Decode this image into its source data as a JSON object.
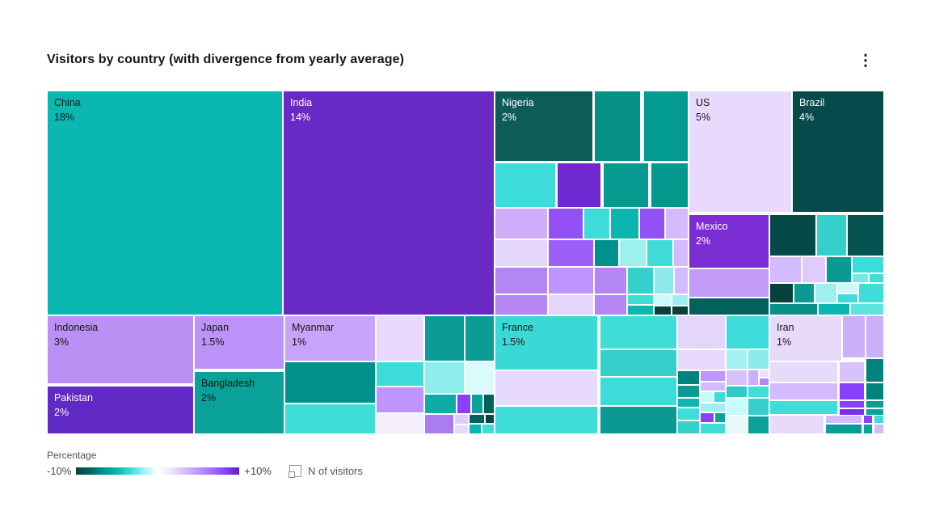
{
  "header": {
    "title": "Visitors by country (with divergence from yearly average)",
    "overflow_glyph": "⋮"
  },
  "legend": {
    "gradient_title": "Percentage",
    "gradient_min_label": "-10%",
    "gradient_max_label": "+10%",
    "gradient_stops": [
      "#0b423f",
      "#00635f",
      "#00918c",
      "#0cb5ae",
      "#3ddbd9",
      "#9ef0f0",
      "#ffffff",
      "#eee3fd",
      "#d4bbff",
      "#be95ff",
      "#a56eff",
      "#8a3ffc",
      "#5b21ad"
    ],
    "size_legend_label": "N of visitors"
  },
  "colors": {
    "background": "#ffffff",
    "title_text": "#161616",
    "cell_text_dark": "#161616",
    "cell_text_light": "#ffffff",
    "divergence_min": "#0b423f",
    "divergence_max": "#5b21ad"
  },
  "chart_data": {
    "type": "treemap",
    "title": "Visitors by country (with divergence from yearly average)",
    "legend_position": "bottom",
    "labeled_nodes": [
      {
        "name": "China",
        "value": "18%"
      },
      {
        "name": "India",
        "value": "14%"
      },
      {
        "name": "Nigeria",
        "value": "2%"
      },
      {
        "name": "US",
        "value": "5%"
      },
      {
        "name": "Brazil",
        "value": "4%"
      },
      {
        "name": "Mexico",
        "value": "2%"
      },
      {
        "name": "Indonesia",
        "value": "3%"
      },
      {
        "name": "Pakistan",
        "value": "2%"
      },
      {
        "name": "Japan",
        "value": "1.5%"
      },
      {
        "name": "Bangladesh",
        "value": "2%"
      },
      {
        "name": "Myanmar",
        "value": "1%"
      },
      {
        "name": "France",
        "value": "1.5%"
      },
      {
        "name": "Iran",
        "value": "1%"
      }
    ],
    "tiles": [
      [
        0,
        0,
        292,
        278,
        "#0ab7b1",
        "China",
        "18%",
        "dark"
      ],
      [
        292,
        0,
        262,
        278,
        "#6929c4",
        "India",
        "14%",
        "light"
      ],
      [
        554,
        0,
        122,
        88,
        "#0d5c57",
        "Nigeria",
        "2%",
        "light"
      ],
      [
        677,
        0,
        58,
        88,
        "#059185"
      ],
      [
        738,
        0,
        56,
        88,
        "#029a92"
      ],
      [
        554,
        89,
        76,
        56,
        "#3ddbd9"
      ],
      [
        631,
        89,
        55,
        56,
        "#6f28d0"
      ],
      [
        688,
        89,
        57,
        56,
        "#049a90"
      ],
      [
        747,
        89,
        47,
        56,
        "#03988e"
      ],
      [
        554,
        145,
        66,
        39,
        "#cfadfb"
      ],
      [
        620,
        145,
        44,
        39,
        "#9350f5"
      ],
      [
        664,
        145,
        33,
        39,
        "#3ddbd9"
      ],
      [
        697,
        145,
        36,
        39,
        "#0cb5ae"
      ],
      [
        733,
        145,
        32,
        39,
        "#9350f5"
      ],
      [
        765,
        145,
        29,
        39,
        "#d4bbff"
      ],
      [
        554,
        184,
        66,
        34,
        "#e4d5fc"
      ],
      [
        620,
        184,
        57,
        34,
        "#9c5ef7"
      ],
      [
        677,
        184,
        31,
        34,
        "#00918c"
      ],
      [
        708,
        184,
        34,
        34,
        "#9ef0f0"
      ],
      [
        742,
        184,
        33,
        34,
        "#40dcd8"
      ],
      [
        775,
        184,
        19,
        34,
        "#d4bbff"
      ],
      [
        554,
        218,
        66,
        34,
        "#b486f4"
      ],
      [
        620,
        218,
        57,
        34,
        "#be95ff"
      ],
      [
        677,
        218,
        41,
        34,
        "#b486f4"
      ],
      [
        718,
        218,
        33,
        34,
        "#35d0cc"
      ],
      [
        751,
        218,
        25,
        34,
        "#8debe9"
      ],
      [
        776,
        218,
        18,
        34,
        "#d4bbff"
      ],
      [
        554,
        252,
        66,
        26,
        "#b486f4"
      ],
      [
        620,
        252,
        57,
        26,
        "#e4d5fc"
      ],
      [
        677,
        252,
        41,
        26,
        "#b486f4"
      ],
      [
        718,
        252,
        33,
        13,
        "#40dcd8"
      ],
      [
        718,
        265,
        33,
        13,
        "#0cb5ae"
      ],
      [
        751,
        252,
        22,
        14,
        "#c9fbfa"
      ],
      [
        751,
        266,
        22,
        12,
        "#06413e"
      ],
      [
        773,
        252,
        21,
        14,
        "#9ef0f0"
      ],
      [
        773,
        266,
        21,
        12,
        "#06413e"
      ],
      [
        794,
        0,
        128,
        151,
        "#e8dafc",
        "US",
        "5%",
        "dark"
      ],
      [
        922,
        0,
        114,
        151,
        "#064a4b",
        "Brazil",
        "4%",
        "light"
      ],
      [
        794,
        153,
        100,
        67,
        "#7b2dd3",
        "Mexico",
        "2%",
        "light"
      ],
      [
        794,
        220,
        100,
        36,
        "#c19bf7"
      ],
      [
        794,
        256,
        100,
        22,
        "#03615d"
      ],
      [
        894,
        153,
        58,
        52,
        "#064a48"
      ],
      [
        952,
        153,
        38,
        52,
        "#35d0cc"
      ],
      [
        990,
        153,
        46,
        52,
        "#055350"
      ],
      [
        894,
        205,
        40,
        33,
        "#d4bbff"
      ],
      [
        934,
        205,
        30,
        33,
        "#dfccfc"
      ],
      [
        964,
        205,
        32,
        33,
        "#0a9a93"
      ],
      [
        996,
        205,
        40,
        21,
        "#3ddbd9"
      ],
      [
        996,
        226,
        21,
        12,
        "#76e8e8"
      ],
      [
        1017,
        226,
        19,
        12,
        "#40dcd8"
      ],
      [
        894,
        238,
        30,
        25,
        "#06413e"
      ],
      [
        924,
        238,
        26,
        25,
        "#0a9a93"
      ],
      [
        950,
        238,
        28,
        25,
        "#9ef0f0"
      ],
      [
        978,
        238,
        26,
        13,
        "#c9fbf9"
      ],
      [
        978,
        251,
        26,
        12,
        "#3ddbd9"
      ],
      [
        1004,
        238,
        32,
        25,
        "#40dcd8"
      ],
      [
        894,
        263,
        60,
        15,
        "#0a8f89"
      ],
      [
        954,
        263,
        40,
        15,
        "#0cb5ae"
      ],
      [
        994,
        263,
        42,
        15,
        "#5fe3de"
      ],
      [
        0,
        278,
        182,
        85,
        "#bb90f4",
        "Indonesia",
        "3%",
        "dark"
      ],
      [
        0,
        365,
        182,
        60,
        "#6129c6",
        "Pakistan",
        "2%",
        "light"
      ],
      [
        182,
        278,
        112,
        67,
        "#bd93fa",
        "Japan",
        "1.5%",
        "dark"
      ],
      [
        182,
        347,
        112,
        78,
        "#0aa198",
        "Bangladesh",
        "2%",
        "dark"
      ],
      [
        294,
        278,
        113,
        57,
        "#c7a4f8",
        "Myanmar",
        "1%",
        "dark"
      ],
      [
        407,
        278,
        60,
        57,
        "#e8daff"
      ],
      [
        467,
        278,
        50,
        57,
        "#0a9c95"
      ],
      [
        517,
        278,
        37,
        57,
        "#0b9d95"
      ],
      [
        294,
        335,
        113,
        52,
        "#00918c"
      ],
      [
        407,
        335,
        60,
        31,
        "#3ddbd9"
      ],
      [
        467,
        335,
        50,
        40,
        "#8eecec"
      ],
      [
        517,
        335,
        37,
        40,
        "#d9fbfb"
      ],
      [
        407,
        366,
        60,
        33,
        "#be95ff"
      ],
      [
        467,
        375,
        40,
        25,
        "#0daca4"
      ],
      [
        507,
        375,
        18,
        25,
        "#8a3ffc"
      ],
      [
        525,
        375,
        15,
        25,
        "#0aa39b"
      ],
      [
        540,
        375,
        14,
        25,
        "#03615c"
      ],
      [
        294,
        387,
        113,
        38,
        "#40dcd8"
      ],
      [
        407,
        399,
        60,
        26,
        "#f3edfc"
      ],
      [
        467,
        400,
        37,
        25,
        "#ab7cf0"
      ],
      [
        504,
        400,
        18,
        13,
        "#dfccfc"
      ],
      [
        504,
        413,
        18,
        12,
        "#e8daff"
      ],
      [
        522,
        400,
        20,
        12,
        "#03615c"
      ],
      [
        542,
        400,
        12,
        12,
        "#0a4541"
      ],
      [
        522,
        412,
        16,
        13,
        "#0cb5ae"
      ],
      [
        538,
        412,
        16,
        13,
        "#40dcd8"
      ],
      [
        554,
        278,
        128,
        68,
        "#3bd9d5",
        "France",
        "1.5%",
        "dark"
      ],
      [
        554,
        346,
        128,
        44,
        "#e8daff"
      ],
      [
        554,
        390,
        128,
        35,
        "#40dcd8"
      ],
      [
        684,
        278,
        96,
        42,
        "#40dcd8"
      ],
      [
        684,
        320,
        96,
        34,
        "#35d0cc"
      ],
      [
        684,
        354,
        96,
        36,
        "#3ddbd9"
      ],
      [
        684,
        390,
        96,
        35,
        "#0b9a93"
      ],
      [
        780,
        278,
        60,
        42,
        "#e4d5fb"
      ],
      [
        780,
        320,
        60,
        26,
        "#e8daff"
      ],
      [
        780,
        346,
        28,
        18,
        "#00837d"
      ],
      [
        780,
        364,
        28,
        16,
        "#0b9a93"
      ],
      [
        780,
        380,
        28,
        12,
        "#0cb5ae"
      ],
      [
        780,
        392,
        28,
        16,
        "#40dcd8"
      ],
      [
        780,
        408,
        28,
        17,
        "#35d0cc"
      ],
      [
        808,
        346,
        32,
        14,
        "#be95ff"
      ],
      [
        808,
        360,
        32,
        12,
        "#d4bbff"
      ],
      [
        808,
        372,
        17,
        14,
        "#c4fafa"
      ],
      [
        825,
        372,
        15,
        14,
        "#3ddbd9"
      ],
      [
        808,
        386,
        32,
        12,
        "#9ef0f0"
      ],
      [
        808,
        398,
        18,
        13,
        "#8a3ffc"
      ],
      [
        826,
        398,
        14,
        13,
        "#0aa39b"
      ],
      [
        808,
        411,
        32,
        14,
        "#40dcd8"
      ],
      [
        840,
        278,
        54,
        42,
        "#3ddbd9"
      ],
      [
        840,
        320,
        27,
        25,
        "#a5f1ef"
      ],
      [
        867,
        320,
        27,
        25,
        "#8debe9"
      ],
      [
        840,
        345,
        27,
        20,
        "#d8c2fb"
      ],
      [
        867,
        345,
        14,
        20,
        "#cbadf9"
      ],
      [
        881,
        345,
        13,
        10,
        "#ecdffc"
      ],
      [
        881,
        355,
        13,
        10,
        "#b488f4"
      ],
      [
        840,
        365,
        27,
        15,
        "#2fcac6"
      ],
      [
        867,
        365,
        27,
        15,
        "#40dcd8"
      ],
      [
        840,
        380,
        27,
        22,
        "#c9fbfa"
      ],
      [
        867,
        380,
        27,
        22,
        "#35d0cc"
      ],
      [
        840,
        402,
        27,
        23,
        "#e8f8f8"
      ],
      [
        867,
        402,
        27,
        23,
        "#0aa39b"
      ],
      [
        894,
        278,
        90,
        57,
        "#e8dafb",
        "Iran",
        "1%",
        "dark"
      ],
      [
        984,
        278,
        29,
        53,
        "#cdaef9"
      ],
      [
        1013,
        278,
        23,
        53,
        "#cdaef9"
      ],
      [
        894,
        335,
        85,
        26,
        "#e8dafb"
      ],
      [
        980,
        335,
        32,
        26,
        "#d9c2fa"
      ],
      [
        1013,
        331,
        23,
        30,
        "#00837d"
      ],
      [
        894,
        361,
        85,
        22,
        "#d4bbff"
      ],
      [
        980,
        361,
        32,
        22,
        "#8a3ffc"
      ],
      [
        1013,
        361,
        23,
        22,
        "#00837d"
      ],
      [
        894,
        383,
        85,
        18,
        "#40dcd8"
      ],
      [
        980,
        383,
        32,
        10,
        "#8a3ffc"
      ],
      [
        980,
        393,
        32,
        9,
        "#7a2ff0"
      ],
      [
        1013,
        383,
        23,
        10,
        "#089d97"
      ],
      [
        1013,
        393,
        23,
        9,
        "#0aa39b"
      ],
      [
        894,
        401,
        68,
        24,
        "#e8dafb"
      ],
      [
        963,
        401,
        46,
        11,
        "#d4bbff"
      ],
      [
        963,
        412,
        46,
        13,
        "#089d97"
      ],
      [
        1010,
        401,
        12,
        11,
        "#8a3ffc"
      ],
      [
        1010,
        412,
        12,
        13,
        "#0aa39b"
      ],
      [
        1023,
        401,
        13,
        11,
        "#40dcd8"
      ],
      [
        1023,
        412,
        13,
        13,
        "#d4bbff"
      ]
    ]
  }
}
